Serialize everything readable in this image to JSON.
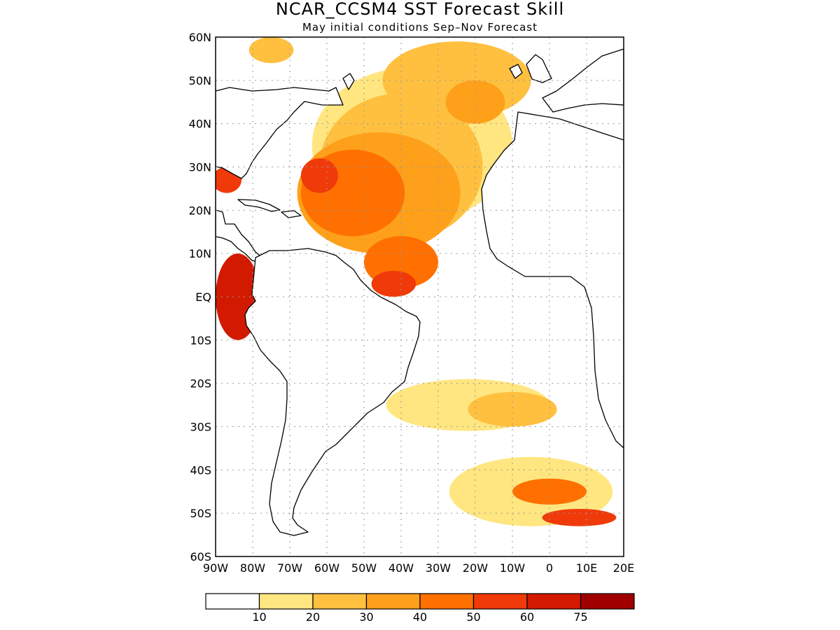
{
  "title": "NCAR_CCSM4  SST Forecast Skill",
  "subtitle": "May initial conditions  Sep–Nov Forecast",
  "map": {
    "lon_range": [
      -90,
      20
    ],
    "lat_range": [
      -60,
      60
    ],
    "lat_ticks": [
      {
        "value": 60,
        "label": "60N"
      },
      {
        "value": 50,
        "label": "50N"
      },
      {
        "value": 40,
        "label": "40N"
      },
      {
        "value": 30,
        "label": "30N"
      },
      {
        "value": 20,
        "label": "20N"
      },
      {
        "value": 10,
        "label": "10N"
      },
      {
        "value": 0,
        "label": "EQ"
      },
      {
        "value": -10,
        "label": "10S"
      },
      {
        "value": -20,
        "label": "20S"
      },
      {
        "value": -30,
        "label": "30S"
      },
      {
        "value": -40,
        "label": "40S"
      },
      {
        "value": -50,
        "label": "50S"
      },
      {
        "value": -60,
        "label": "60S"
      }
    ],
    "lon_ticks": [
      {
        "value": -90,
        "label": "90W"
      },
      {
        "value": -80,
        "label": "80W"
      },
      {
        "value": -70,
        "label": "70W"
      },
      {
        "value": -60,
        "label": "60W"
      },
      {
        "value": -50,
        "label": "50W"
      },
      {
        "value": -40,
        "label": "40W"
      },
      {
        "value": -30,
        "label": "30W"
      },
      {
        "value": -20,
        "label": "20W"
      },
      {
        "value": -10,
        "label": "10W"
      },
      {
        "value": 0,
        "label": "0"
      },
      {
        "value": 10,
        "label": "10E"
      },
      {
        "value": 20,
        "label": "20E"
      }
    ],
    "land_color": "#ffffff",
    "coast_color": "#000000",
    "grid_style": "dotted"
  },
  "colorbar": {
    "colors": [
      "#ffffff",
      "#ffe680",
      "#ffc040",
      "#ffa01a",
      "#ff7000",
      "#f03a0a",
      "#d21a00",
      "#a00000"
    ],
    "labels": [
      "10",
      "20",
      "30",
      "40",
      "50",
      "60",
      "75"
    ]
  },
  "skill_regions": [
    {
      "level": 1,
      "lon": -37,
      "lat": 35,
      "rx": 27,
      "ry": 18
    },
    {
      "level": 2,
      "lon": -40,
      "lat": 30,
      "rx": 22,
      "ry": 17
    },
    {
      "level": 3,
      "lon": -46,
      "lat": 24,
      "rx": 22,
      "ry": 14
    },
    {
      "level": 4,
      "lon": -53,
      "lat": 24,
      "rx": 14,
      "ry": 10
    },
    {
      "level": 5,
      "lon": -62,
      "lat": 28,
      "rx": 5,
      "ry": 4
    },
    {
      "level": 4,
      "lon": -40,
      "lat": 8,
      "rx": 10,
      "ry": 6
    },
    {
      "level": 5,
      "lon": -42,
      "lat": 3,
      "rx": 6,
      "ry": 3
    },
    {
      "level": 2,
      "lon": -25,
      "lat": 50,
      "rx": 20,
      "ry": 9
    },
    {
      "level": 3,
      "lon": -20,
      "lat": 45,
      "rx": 8,
      "ry": 5
    },
    {
      "level": 6,
      "lon": -84,
      "lat": 0,
      "rx": 6,
      "ry": 10
    },
    {
      "level": 5,
      "lon": -87,
      "lat": 27,
      "rx": 4,
      "ry": 3
    },
    {
      "level": 2,
      "lon": -75,
      "lat": 57,
      "rx": 6,
      "ry": 3
    },
    {
      "level": 1,
      "lon": -22,
      "lat": -25,
      "rx": 22,
      "ry": 6
    },
    {
      "level": 2,
      "lon": -10,
      "lat": -26,
      "rx": 12,
      "ry": 4
    },
    {
      "level": 1,
      "lon": -5,
      "lat": -45,
      "rx": 22,
      "ry": 8
    },
    {
      "level": 4,
      "lon": 0,
      "lat": -45,
      "rx": 10,
      "ry": 3
    },
    {
      "level": 5,
      "lon": 8,
      "lat": -51,
      "rx": 10,
      "ry": 2
    }
  ]
}
